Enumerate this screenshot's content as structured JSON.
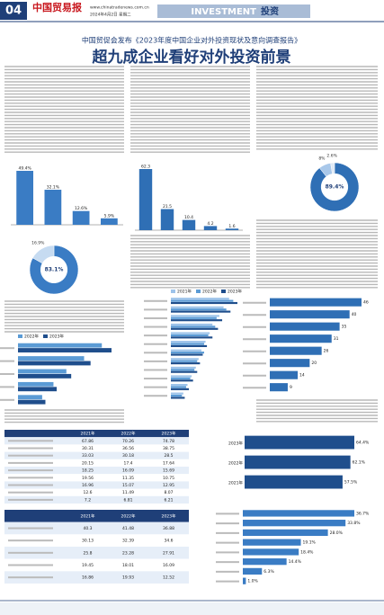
{
  "header": {
    "page": "04",
    "masthead": "中国贸易报",
    "site": "www.chinatradenews.com.cn",
    "date": "2024年4月2日 星期二",
    "section_en": "INVESTMENT",
    "section_cn": "投资"
  },
  "article": {
    "kicker": "中国贸促会发布《2023年度中国企业对外投资现状及意向调查报告》",
    "title": "超九成企业看好对外投资前景"
  },
  "charts": [
    {
      "kind": "vbar",
      "color": "#2f6fb5",
      "values": [
        62.3,
        21.5,
        10.4,
        4.2,
        1.6
      ]
    },
    {
      "kind": "vbar",
      "color": "#3a7cc4",
      "values": [
        49.4,
        32.1,
        12.6,
        5.9
      ],
      "value_labels": [
        "49.4%",
        "32.1%",
        "12.6%",
        "5.9%"
      ]
    },
    {
      "kind": "donut",
      "colors": [
        "#2f6fb5",
        "#a9c8ea",
        "#dfe9f5"
      ],
      "values": [
        89.4,
        8,
        2.6
      ],
      "value_labels": [
        "89.4%",
        "8%",
        "2.6%"
      ]
    },
    {
      "kind": "donut",
      "colors": [
        "#3a7cc4",
        "#c6dbf1"
      ],
      "values": [
        83.1,
        16.9
      ],
      "value_labels": [
        "83.1%",
        "16.9%"
      ]
    },
    {
      "kind": "hbar",
      "series": [
        {
          "name": "2021年",
          "color": "#9dc3ea",
          "values": [
            42,
            38,
            35,
            30,
            28,
            25,
            22,
            20,
            18,
            15,
            12,
            9
          ]
        },
        {
          "name": "2022年",
          "color": "#5b9bd5",
          "values": [
            45,
            40,
            33,
            32,
            27,
            24,
            24,
            19,
            17,
            14,
            11,
            8
          ]
        },
        {
          "name": "2023年",
          "color": "#1f4e8c",
          "values": [
            48,
            43,
            37,
            34,
            30,
            26,
            23,
            21,
            19,
            16,
            13,
            10
          ]
        }
      ]
    },
    {
      "kind": "hbar",
      "series": [
        {
          "name": "2022年",
          "color": "#5b9bd5",
          "values": [
            52,
            41,
            30,
            22,
            15
          ]
        },
        {
          "name": "2023年",
          "color": "#1f4e8c",
          "values": [
            58,
            45,
            33,
            24,
            17
          ]
        }
      ]
    },
    {
      "kind": "hbar",
      "series": [
        {
          "color": "#2f6fb5",
          "values": [
            46,
            40,
            35,
            31,
            26,
            20,
            14,
            9
          ]
        }
      ]
    },
    {
      "kind": "table",
      "columns": [
        "2021年",
        "2022年",
        "2023年"
      ],
      "rows": [
        [
          67.86,
          70.26,
          74.78
        ],
        [
          30.31,
          36.56,
          38.75
        ],
        [
          33.03,
          30.18,
          28.5
        ],
        [
          20.15,
          17.4,
          17.64
        ],
        [
          18.25,
          16.09,
          15.69
        ],
        [
          19.56,
          11.35,
          10.75
        ],
        [
          16.96,
          15.07,
          12.95
        ],
        [
          12.6,
          11.49,
          8.07
        ],
        [
          7.2,
          6.81,
          6.21
        ]
      ]
    },
    {
      "kind": "table",
      "columns": [
        "2021年",
        "2022年",
        "2023年"
      ],
      "rows": [
        [
          40.3,
          41.48,
          36.88
        ],
        [
          30.13,
          32.39,
          34.6
        ],
        [
          25.8,
          23.28,
          27.91
        ],
        [
          19.45,
          18.01,
          16.09
        ],
        [
          16.86,
          19.93,
          12.52
        ]
      ]
    },
    {
      "kind": "hbar",
      "categories": [
        "2023年",
        "2022年",
        "2021年"
      ],
      "series": [
        {
          "color": "#1f4e8c",
          "values": [
            64.4,
            62.1,
            57.5
          ],
          "value_labels": [
            "64.4%",
            "62.1%",
            "57.5%"
          ]
        }
      ]
    },
    {
      "kind": "hbar",
      "series": [
        {
          "color": "#3a7cc4",
          "values": [
            36.7,
            33.8,
            28,
            19.1,
            18.4,
            14.4,
            6.3,
            1
          ],
          "value_labels": [
            "36.7%",
            "33.8%",
            "28.0%",
            "19.1%",
            "18.4%",
            "14.4%",
            "6.3%",
            "1.0%"
          ]
        }
      ]
    }
  ]
}
